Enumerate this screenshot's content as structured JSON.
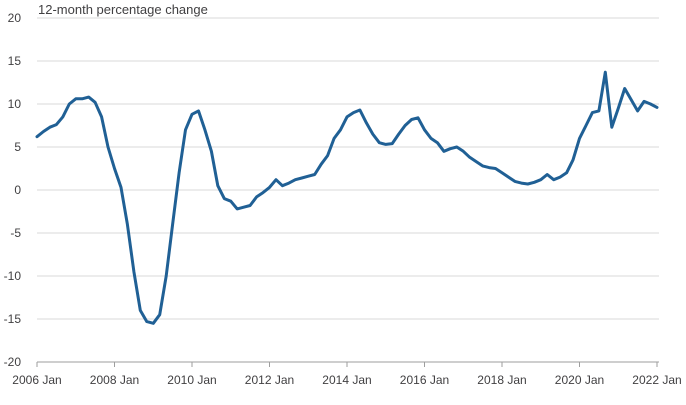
{
  "chart_data": {
    "type": "line",
    "title": "",
    "xlabel": "",
    "ylabel": "12-month percentage change",
    "ylim": [
      -20,
      20
    ],
    "yticks": [
      20,
      15,
      10,
      5,
      0,
      -5,
      -10,
      -15,
      -20
    ],
    "xticks": [
      "2006 Jan",
      "2008 Jan",
      "2010 Jan",
      "2012 Jan",
      "2014 Jan",
      "2016 Jan",
      "2018 Jan",
      "2020 Jan",
      "2022 Jan"
    ],
    "grid": true,
    "legend": "none",
    "series_color": "#206095",
    "grid_color": "#d9d9d9",
    "x": [
      "2006-01",
      "2006-03",
      "2006-05",
      "2006-07",
      "2006-09",
      "2006-11",
      "2007-01",
      "2007-03",
      "2007-05",
      "2007-07",
      "2007-09",
      "2007-11",
      "2008-01",
      "2008-03",
      "2008-05",
      "2008-07",
      "2008-09",
      "2008-11",
      "2009-01",
      "2009-03",
      "2009-05",
      "2009-07",
      "2009-09",
      "2009-11",
      "2010-01",
      "2010-03",
      "2010-05",
      "2010-07",
      "2010-09",
      "2010-11",
      "2011-01",
      "2011-03",
      "2011-05",
      "2011-07",
      "2011-09",
      "2011-11",
      "2012-01",
      "2012-03",
      "2012-05",
      "2012-07",
      "2012-09",
      "2012-11",
      "2013-01",
      "2013-03",
      "2013-05",
      "2013-07",
      "2013-09",
      "2013-11",
      "2014-01",
      "2014-03",
      "2014-05",
      "2014-07",
      "2014-09",
      "2014-11",
      "2015-01",
      "2015-03",
      "2015-05",
      "2015-07",
      "2015-09",
      "2015-11",
      "2016-01",
      "2016-03",
      "2016-05",
      "2016-07",
      "2016-09",
      "2016-11",
      "2017-01",
      "2017-03",
      "2017-05",
      "2017-07",
      "2017-09",
      "2017-11",
      "2018-01",
      "2018-03",
      "2018-05",
      "2018-07",
      "2018-09",
      "2018-11",
      "2019-01",
      "2019-03",
      "2019-05",
      "2019-07",
      "2019-09",
      "2019-11",
      "2020-01",
      "2020-03",
      "2020-05",
      "2020-07",
      "2020-09",
      "2020-11",
      "2021-01",
      "2021-03",
      "2021-05",
      "2021-07",
      "2021-09",
      "2021-11",
      "2022-01"
    ],
    "values": [
      6.2,
      6.8,
      7.3,
      7.6,
      8.5,
      10.0,
      10.6,
      10.6,
      10.8,
      10.2,
      8.5,
      5.0,
      2.5,
      0.3,
      -4.0,
      -9.5,
      -14.0,
      -15.3,
      -15.5,
      -14.5,
      -10.0,
      -4.0,
      2.0,
      7.0,
      8.8,
      9.2,
      7.0,
      4.5,
      0.5,
      -1.0,
      -1.3,
      -2.2,
      -2.0,
      -1.8,
      -0.8,
      -0.3,
      0.3,
      1.2,
      0.5,
      0.8,
      1.2,
      1.4,
      1.6,
      1.8,
      3.0,
      4.0,
      6.0,
      7.0,
      8.5,
      9.0,
      9.3,
      7.8,
      6.5,
      5.5,
      5.3,
      5.4,
      6.5,
      7.5,
      8.2,
      8.4,
      7.0,
      6.0,
      5.5,
      4.5,
      4.8,
      5.0,
      4.5,
      3.8,
      3.3,
      2.8,
      2.6,
      2.5,
      2.0,
      1.5,
      1.0,
      0.8,
      0.7,
      0.9,
      1.2,
      1.8,
      1.2,
      1.5,
      2.0,
      3.5,
      6.0,
      7.5,
      9.0,
      9.2,
      13.7,
      7.3,
      9.5,
      11.8,
      10.5,
      9.2,
      10.3,
      10.0,
      9.6
    ]
  }
}
